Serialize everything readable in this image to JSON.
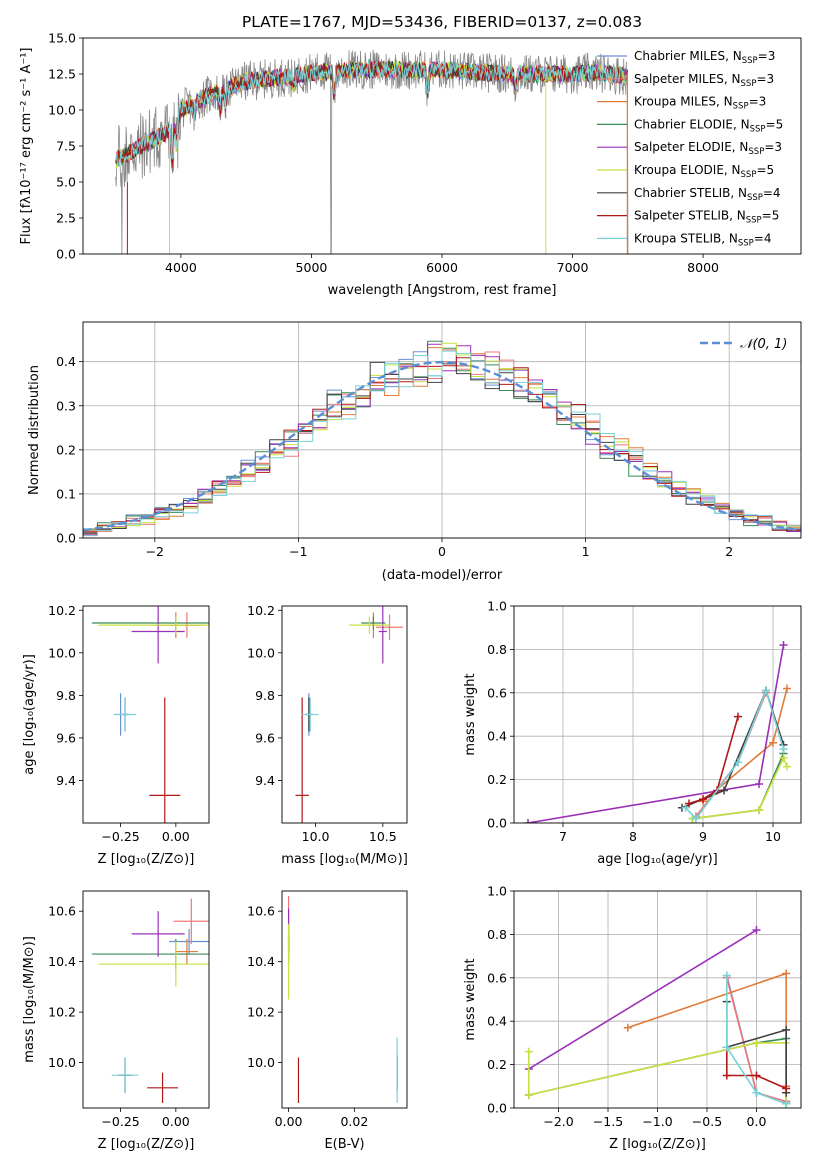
{
  "figure_title": "PLATE=1767, MJD=53436, FIBERID=0137, z=0.083",
  "colors": {
    "Chabrier MILES": "#6b8fd6",
    "Salpeter MILES": "#f07878",
    "Kroupa MILES": "#e07b39",
    "Chabrier ELODIE": "#3a8a55",
    "Salpeter ELODIE": "#9b30b8",
    "Kroupa ELODIE": "#c8e040",
    "Chabrier STELIB": "#404040",
    "Salpeter STELIB": "#b01818",
    "Kroupa STELIB": "#78d2d8",
    "data": "#888888",
    "normal": "#5a8fd8"
  },
  "chart_data": [
    {
      "type": "line",
      "panel": "spectrum",
      "xlabel": "wavelength [Angstrom, rest frame]",
      "ylabel": "Flux [fλ10⁻¹⁷ erg cm⁻² s⁻¹ A⁻¹]",
      "xlim": [
        3250,
        8750
      ],
      "ylim": [
        0,
        15
      ],
      "xticks": [
        4000,
        5000,
        6000,
        7000,
        8000
      ],
      "yticks": [
        0.0,
        2.5,
        5.0,
        7.5,
        10.0,
        12.5,
        15.0
      ],
      "continuum_x": [
        3500,
        3700,
        3900,
        4000,
        4200,
        4500,
        4800,
        5000,
        5300,
        5600,
        6000,
        6300,
        6600,
        7000,
        7200,
        7400
      ],
      "continuum_y": [
        6.5,
        7.5,
        8.5,
        10.0,
        11.0,
        12.0,
        12.3,
        12.6,
        12.8,
        12.8,
        12.8,
        12.6,
        12.5,
        12.5,
        12.6,
        12.4
      ],
      "legend_position": "upper right",
      "legend": [
        {
          "name": "Chabrier MILES",
          "n": "3"
        },
        {
          "name": "Salpeter MILES",
          "n": "3"
        },
        {
          "name": "Kroupa MILES",
          "n": "3"
        },
        {
          "name": "Chabrier ELODIE",
          "n": "5"
        },
        {
          "name": "Salpeter ELODIE",
          "n": "3"
        },
        {
          "name": "Kroupa ELODIE",
          "n": "5"
        },
        {
          "name": "Chabrier STELIB",
          "n": "4"
        },
        {
          "name": "Salpeter STELIB",
          "n": "5"
        },
        {
          "name": "Kroupa STELIB",
          "n": "4"
        }
      ],
      "legend_suffix": "SSP"
    },
    {
      "type": "line",
      "panel": "residuals",
      "xlabel": "(data-model)/error",
      "ylabel": "Normed distribution",
      "xlim": [
        -2.5,
        2.5
      ],
      "ylim": [
        0,
        0.49
      ],
      "xticks": [
        -2,
        -1,
        0,
        1,
        2
      ],
      "yticks": [
        0.0,
        0.1,
        0.2,
        0.3,
        0.4
      ],
      "grid": true,
      "legend_label": "𝒩(0, 1)",
      "legend_position": "upper right",
      "bin_width": 0.1
    },
    {
      "type": "scatter",
      "panel": "age_vs_Z",
      "xlabel": "Z [log₁₀(Z/Z⊙)]",
      "ylabel": "age  [log₁₀(age/yr)]",
      "xlim": [
        -0.42,
        0.15
      ],
      "ylim": [
        9.2,
        10.22
      ],
      "xticks": [
        -0.25,
        0.0
      ],
      "xticklabels": [
        "−0.25",
        "0.00"
      ],
      "yticks": [
        9.4,
        9.6,
        9.8,
        10.0,
        10.2
      ],
      "points": [
        {
          "model": "Chabrier MILES",
          "x": -0.25,
          "y": 9.71,
          "xerr": 0.03,
          "yerr": 0.1
        },
        {
          "model": "Salpeter MILES",
          "x": 0.05,
          "y": 10.13,
          "xerr": 0.08,
          "yerr": 0.06
        },
        {
          "model": "Kroupa MILES",
          "x": 0.0,
          "y": 10.13,
          "xerr": 0.1,
          "yerr": 0.06
        },
        {
          "model": "Chabrier ELODIE",
          "x": 0.0,
          "y": 10.14,
          "xerr": 0.38,
          "yerr": 0.03
        },
        {
          "model": "Salpeter ELODIE",
          "x": -0.08,
          "y": 10.1,
          "xerr": 0.12,
          "yerr": 0.15
        },
        {
          "model": "Kroupa ELODIE",
          "x": 0.0,
          "y": 10.13,
          "xerr": 0.35,
          "yerr": 0.04
        },
        {
          "model": "Chabrier STELIB",
          "x": -0.23,
          "y": 9.71,
          "xerr": 0.02,
          "yerr": 0.08
        },
        {
          "model": "Salpeter STELIB",
          "x": -0.05,
          "y": 9.33,
          "xerr": 0.07,
          "yerr": 0.46
        },
        {
          "model": "Kroupa STELIB",
          "x": -0.23,
          "y": 9.71,
          "xerr": 0.05,
          "yerr": 0.08
        }
      ]
    },
    {
      "type": "scatter",
      "panel": "age_vs_mass",
      "xlabel": "mass [log₁₀(M/M⊙)]",
      "ylabel": "",
      "xlim": [
        9.75,
        10.68
      ],
      "ylim": [
        9.2,
        10.22
      ],
      "xticks": [
        10.0,
        10.5
      ],
      "xticklabels": [
        "10.0",
        "10.5"
      ],
      "yticks": [
        9.4,
        9.6,
        9.8,
        10.0,
        10.2
      ],
      "points": [
        {
          "model": "Chabrier MILES",
          "x": 9.95,
          "y": 9.71,
          "xerr": 0.02,
          "yerr": 0.1
        },
        {
          "model": "Salpeter MILES",
          "x": 10.55,
          "y": 10.12,
          "xerr": 0.1,
          "yerr": 0.06
        },
        {
          "model": "Kroupa MILES",
          "x": 10.43,
          "y": 10.13,
          "xerr": 0.05,
          "yerr": 0.06
        },
        {
          "model": "Chabrier ELODIE",
          "x": 10.43,
          "y": 10.14,
          "xerr": 0.09,
          "yerr": 0.03
        },
        {
          "model": "Salpeter ELODIE",
          "x": 10.5,
          "y": 10.1,
          "xerr": 0.03,
          "yerr": 0.15
        },
        {
          "model": "Kroupa ELODIE",
          "x": 10.4,
          "y": 10.13,
          "xerr": 0.15,
          "yerr": 0.04
        },
        {
          "model": "Chabrier STELIB",
          "x": 9.95,
          "y": 9.71,
          "xerr": 0.02,
          "yerr": 0.08
        },
        {
          "model": "Salpeter STELIB",
          "x": 9.9,
          "y": 9.33,
          "xerr": 0.05,
          "yerr": 0.46
        },
        {
          "model": "Kroupa STELIB",
          "x": 9.96,
          "y": 9.71,
          "xerr": 0.06,
          "yerr": 0.08
        }
      ]
    },
    {
      "type": "line",
      "panel": "weight_vs_age",
      "xlabel": "age  [log₁₀(age/yr)]",
      "ylabel": "mass weight",
      "xlim": [
        6.3,
        10.4
      ],
      "ylim": [
        0,
        1
      ],
      "xticks": [
        7,
        8,
        9,
        10
      ],
      "yticks": [
        0.0,
        0.2,
        0.4,
        0.6,
        0.8,
        1.0
      ],
      "grid": true,
      "series": [
        {
          "model": "Chabrier MILES",
          "x": [
            8.9,
            9.5,
            9.9
          ],
          "y": [
            0.03,
            0.28,
            0.61
          ]
        },
        {
          "model": "Salpeter MILES",
          "x": [
            8.9,
            9.5,
            9.9
          ],
          "y": [
            0.03,
            0.28,
            0.6
          ]
        },
        {
          "model": "Kroupa MILES",
          "x": [
            9.0,
            10.0,
            10.2
          ],
          "y": [
            0.1,
            0.37,
            0.62
          ]
        },
        {
          "model": "Chabrier ELODIE",
          "x": [
            8.85,
            9.8,
            10.15
          ],
          "y": [
            0.02,
            0.06,
            0.32
          ]
        },
        {
          "model": "Salpeter ELODIE",
          "x": [
            6.5,
            9.8,
            10.15
          ],
          "y": [
            0.0,
            0.18,
            0.82
          ]
        },
        {
          "model": "Kroupa ELODIE",
          "x": [
            8.85,
            9.8,
            10.15,
            10.2
          ],
          "y": [
            0.02,
            0.06,
            0.3,
            0.26
          ]
        },
        {
          "model": "Chabrier STELIB",
          "x": [
            8.7,
            9.3,
            9.9,
            10.15
          ],
          "y": [
            0.07,
            0.15,
            0.61,
            0.36
          ]
        },
        {
          "model": "Salpeter STELIB",
          "x": [
            8.8,
            9.0,
            9.2,
            9.5
          ],
          "y": [
            0.09,
            0.11,
            0.15,
            0.49
          ]
        },
        {
          "model": "Kroupa STELIB",
          "x": [
            8.75,
            8.9,
            9.5,
            9.9,
            10.15
          ],
          "y": [
            0.07,
            0.02,
            0.28,
            0.61,
            0.34
          ]
        }
      ]
    },
    {
      "type": "scatter",
      "panel": "mass_vs_Z",
      "xlabel": "Z [log₁₀(Z/Z⊙)]",
      "ylabel": "mass [log₁₀(M/M⊙)]",
      "xlim": [
        -0.42,
        0.15
      ],
      "ylim": [
        9.82,
        10.68
      ],
      "xticks": [
        -0.25,
        0.0
      ],
      "xticklabels": [
        "−0.25",
        "0.00"
      ],
      "yticks": [
        10.0,
        10.2,
        10.4,
        10.6
      ],
      "points": [
        {
          "model": "Chabrier MILES",
          "x": 0.06,
          "y": 10.48,
          "xerr": 0.09,
          "yerr": 0.05
        },
        {
          "model": "Salpeter MILES",
          "x": 0.07,
          "y": 10.56,
          "xerr": 0.08,
          "yerr": 0.09
        },
        {
          "model": "Kroupa MILES",
          "x": 0.05,
          "y": 10.44,
          "xerr": 0.05,
          "yerr": 0.05
        },
        {
          "model": "Chabrier ELODIE",
          "x": 0.0,
          "y": 10.43,
          "xerr": 0.38,
          "yerr": 0.06
        },
        {
          "model": "Salpeter ELODIE",
          "x": -0.08,
          "y": 10.51,
          "xerr": 0.12,
          "yerr": 0.09
        },
        {
          "model": "Kroupa ELODIE",
          "x": 0.0,
          "y": 10.39,
          "xerr": 0.35,
          "yerr": 0.09
        },
        {
          "model": "Chabrier STELIB",
          "x": -0.23,
          "y": 9.95,
          "xerr": 0.03,
          "yerr": 0.07
        },
        {
          "model": "Salpeter STELIB",
          "x": -0.06,
          "y": 9.9,
          "xerr": 0.07,
          "yerr": 0.06
        },
        {
          "model": "Kroupa STELIB",
          "x": -0.23,
          "y": 9.95,
          "xerr": 0.06,
          "yerr": 0.07
        }
      ]
    },
    {
      "type": "scatter",
      "panel": "mass_vs_ebv",
      "xlabel": "E(B-V)",
      "ylabel": "",
      "xlim": [
        -0.002,
        0.036
      ],
      "ylim": [
        9.82,
        10.68
      ],
      "xticks": [
        0.0,
        0.02
      ],
      "xticklabels": [
        "0.00",
        "0.02"
      ],
      "yticks": [
        10.0,
        10.2,
        10.4,
        10.6
      ],
      "points": [
        {
          "model": "Chabrier MILES",
          "x": 0.0,
          "y": 10.5,
          "xerr": 0.0,
          "yerr": 0.05
        },
        {
          "model": "Salpeter MILES",
          "x": 0.0,
          "y": 10.57,
          "xerr": 0.0,
          "yerr": 0.09
        },
        {
          "model": "Kroupa MILES",
          "x": 0.0,
          "y": 10.45,
          "xerr": 0.0,
          "yerr": 0.05
        },
        {
          "model": "Chabrier ELODIE",
          "x": 0.0,
          "y": 10.45,
          "xerr": 0.0,
          "yerr": 0.06
        },
        {
          "model": "Salpeter ELODIE",
          "x": 0.0,
          "y": 10.52,
          "xerr": 0.0,
          "yerr": 0.09
        },
        {
          "model": "Kroupa ELODIE",
          "x": 0.0,
          "y": 10.4,
          "xerr": 0.0,
          "yerr": 0.15
        },
        {
          "model": "Chabrier STELIB",
          "x": 0.033,
          "y": 9.96,
          "xerr": 0.0,
          "yerr": 0.07
        },
        {
          "model": "Salpeter STELIB",
          "x": 0.003,
          "y": 9.93,
          "xerr": 0.0,
          "yerr": 0.09
        },
        {
          "model": "Kroupa STELIB",
          "x": 0.033,
          "y": 9.97,
          "xerr": 0.0,
          "yerr": 0.13
        }
      ]
    },
    {
      "type": "line",
      "panel": "weight_vs_Z",
      "xlabel": "Z [log₁₀(Z/Z⊙)]",
      "ylabel": "mass weight",
      "xlim": [
        -2.45,
        0.45
      ],
      "ylim": [
        0,
        1
      ],
      "xticks": [
        -2.0,
        -1.5,
        -1.0,
        -0.5,
        0.0
      ],
      "xticklabels": [
        "−2.0",
        "−1.5",
        "−1.0",
        "−0.5",
        "0.0"
      ],
      "yticks": [
        0.0,
        0.2,
        0.4,
        0.6,
        0.8,
        1.0
      ],
      "grid": true,
      "series": [
        {
          "model": "Chabrier MILES",
          "x": [
            -0.3,
            0.0,
            0.3
          ],
          "y": [
            0.61,
            0.07,
            0.03
          ]
        },
        {
          "model": "Salpeter MILES",
          "x": [
            -0.3,
            0.0,
            0.3
          ],
          "y": [
            0.6,
            0.07,
            0.03
          ]
        },
        {
          "model": "Kroupa MILES",
          "x": [
            -1.3,
            0.3,
            0.3
          ],
          "y": [
            0.37,
            0.62,
            0.1
          ]
        },
        {
          "model": "Chabrier ELODIE",
          "x": [
            -2.3,
            0.0,
            0.3,
            0.3
          ],
          "y": [
            0.06,
            0.3,
            0.32,
            0.02
          ]
        },
        {
          "model": "Salpeter ELODIE",
          "x": [
            -2.3,
            0.0
          ],
          "y": [
            0.18,
            0.82
          ]
        },
        {
          "model": "Kroupa ELODIE",
          "x": [
            -2.3,
            -2.3,
            0.0,
            0.3,
            0.3
          ],
          "y": [
            0.26,
            0.06,
            0.3,
            0.3,
            0.02
          ]
        },
        {
          "model": "Chabrier STELIB",
          "x": [
            -0.3,
            -0.3,
            0.3,
            0.3
          ],
          "y": [
            0.49,
            0.28,
            0.36,
            0.07
          ]
        },
        {
          "model": "Salpeter STELIB",
          "x": [
            -0.3,
            -0.3,
            0.0,
            0.3
          ],
          "y": [
            0.28,
            0.15,
            0.15,
            0.09
          ]
        },
        {
          "model": "Kroupa STELIB",
          "x": [
            -0.3,
            -0.3,
            0.0,
            0.3
          ],
          "y": [
            0.61,
            0.28,
            0.07,
            0.02
          ]
        }
      ]
    }
  ]
}
